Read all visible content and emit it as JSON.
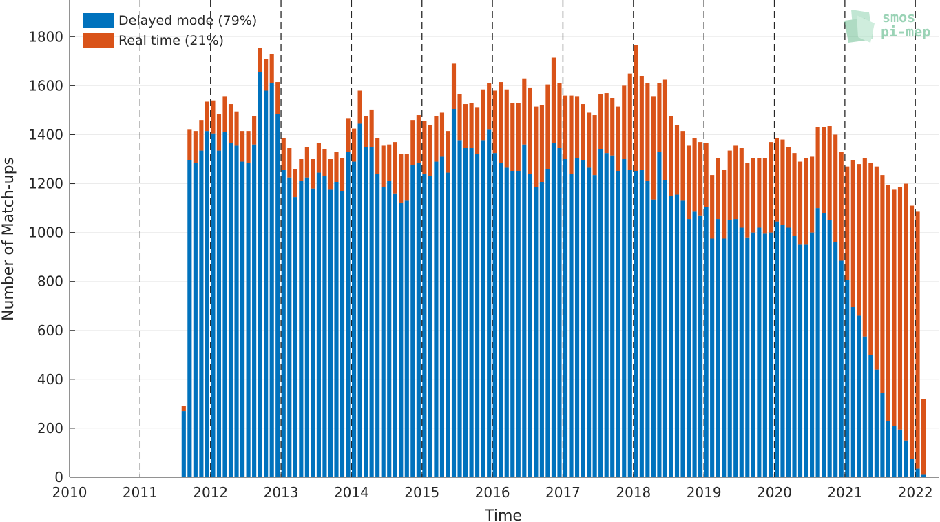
{
  "chart_data": {
    "type": "bar",
    "stacked": true,
    "xlabel": "Time",
    "ylabel": "Number of Match-ups",
    "xlim": [
      2010,
      2022.33
    ],
    "ylim": [
      0,
      1950
    ],
    "x_ticks": [
      "2010",
      "2011",
      "2012",
      "2013",
      "2014",
      "2015",
      "2016",
      "2017",
      "2018",
      "2019",
      "2020",
      "2021",
      "2022"
    ],
    "y_ticks": [
      "0",
      "200",
      "400",
      "600",
      "800",
      "1000",
      "1200",
      "1400",
      "1600",
      "1800"
    ],
    "year_lines": [
      2011,
      2012,
      2013,
      2014,
      2015,
      2016,
      2017,
      2018,
      2019,
      2020,
      2021,
      2022
    ],
    "grid": true,
    "legend_position": "top-left",
    "start_time": 2011.62,
    "bar_step_years": 0.0833,
    "series": [
      {
        "name": "Delayed mode (79%)",
        "color": "#0072bd",
        "values": [
          270,
          1295,
          1285,
          1335,
          1415,
          1405,
          1335,
          1410,
          1365,
          1355,
          1290,
          1285,
          1360,
          1655,
          1580,
          1610,
          1485,
          1255,
          1225,
          1145,
          1210,
          1225,
          1180,
          1245,
          1230,
          1175,
          1205,
          1170,
          1330,
          1290,
          1445,
          1350,
          1350,
          1240,
          1185,
          1210,
          1160,
          1120,
          1130,
          1275,
          1285,
          1240,
          1230,
          1290,
          1310,
          1245,
          1505,
          1375,
          1345,
          1345,
          1320,
          1375,
          1420,
          1325,
          1285,
          1265,
          1250,
          1250,
          1360,
          1240,
          1185,
          1205,
          1260,
          1365,
          1345,
          1300,
          1240,
          1305,
          1295,
          1265,
          1235,
          1340,
          1325,
          1315,
          1250,
          1300,
          1255,
          1250,
          1255,
          1210,
          1135,
          1330,
          1215,
          1150,
          1155,
          1130,
          1055,
          1085,
          1070,
          1105,
          975,
          1055,
          975,
          1050,
          1055,
          1020,
          980,
          1000,
          1020,
          995,
          1000,
          1045,
          1030,
          1020,
          985,
          950,
          950,
          1000,
          1100,
          1080,
          1050,
          960,
          885,
          805,
          695,
          660,
          575,
          500,
          440,
          345,
          230,
          210,
          195,
          150,
          75,
          35,
          10
        ],
        "totals_note": "stacked totals below"
      },
      {
        "name": "Real time (21%)",
        "color": "#d95319",
        "values": [
          20,
          125,
          130,
          125,
          120,
          135,
          150,
          145,
          160,
          140,
          125,
          130,
          115,
          100,
          130,
          120,
          130,
          130,
          120,
          115,
          90,
          125,
          120,
          120,
          110,
          125,
          125,
          135,
          135,
          135,
          135,
          125,
          150,
          145,
          170,
          150,
          210,
          200,
          190,
          185,
          195,
          215,
          210,
          185,
          180,
          170,
          185,
          190,
          180,
          185,
          190,
          210,
          190,
          255,
          330,
          320,
          280,
          280,
          270,
          350,
          330,
          315,
          345,
          350,
          265,
          260,
          320,
          250,
          230,
          225,
          245,
          225,
          245,
          235,
          265,
          300,
          395,
          515,
          385,
          400,
          420,
          280,
          410,
          325,
          285,
          285,
          300,
          300,
          300,
          260,
          260,
          250,
          280,
          285,
          300,
          325,
          305,
          305,
          285,
          310,
          370,
          340,
          350,
          330,
          340,
          340,
          355,
          310,
          330,
          350,
          385,
          440,
          445,
          465,
          600,
          620,
          730,
          785,
          830,
          890,
          965,
          965,
          990,
          1050,
          1035,
          1050,
          310
        ],
        "note": "height of each orange segment stacked above the blue segment"
      }
    ]
  },
  "legend": {
    "delayed_label": "Delayed mode (79%)",
    "realtime_label": "Real time (21%)"
  },
  "logo": {
    "line1": "smos",
    "line2": "pi-mep"
  }
}
